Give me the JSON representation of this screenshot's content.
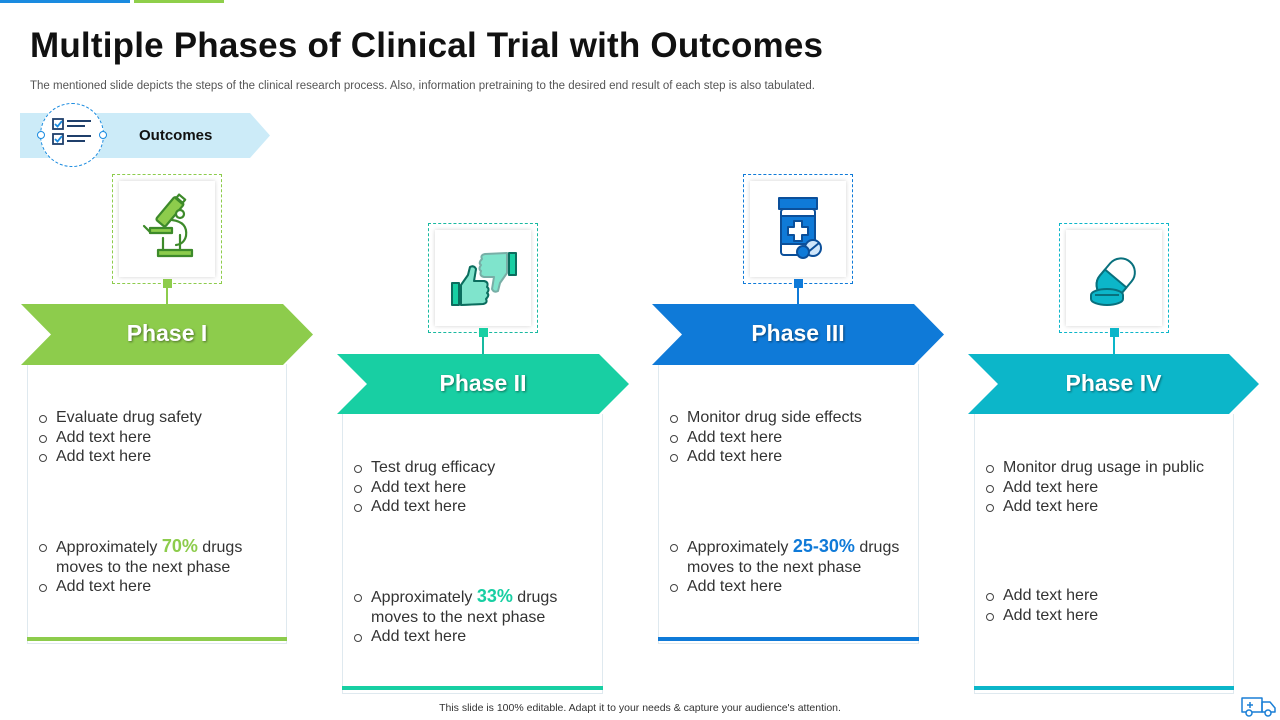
{
  "title": "Multiple Phases of Clinical Trial with Outcomes",
  "subtitle": "The mentioned slide depicts the steps of the clinical research process. Also, information pretraining to the desired end result of each step is also tabulated.",
  "outcomes": {
    "label": "Outcomes",
    "icon": "checklist-icon"
  },
  "colors": {
    "phase1": "#8dcc4c",
    "phase2": "#18cfa3",
    "phase3": "#0f7ad8",
    "phase4": "#0cb6c9",
    "banner": "#ccebf8"
  },
  "phases": [
    {
      "title": "Phase I",
      "icon": "microscope-icon",
      "bullets": [
        "Evaluate drug safety",
        "Add text here",
        "Add text here"
      ],
      "outcome": {
        "prefix": "Approximately ",
        "highlight": "70%",
        "suffix": " drugs moves to the next phase"
      },
      "extra": "Add text here"
    },
    {
      "title": "Phase II",
      "icon": "thumbs-up-down-icon",
      "bullets": [
        "Test drug efficacy",
        "Add text here",
        "Add text here"
      ],
      "outcome": {
        "prefix": "Approximately ",
        "highlight": "33%",
        "suffix": " drugs moves to the next phase"
      },
      "extra": "Add text here"
    },
    {
      "title": "Phase III",
      "icon": "medicine-bottle-icon",
      "bullets": [
        "Monitor drug side effects",
        "Add text here",
        "Add text here"
      ],
      "outcome": {
        "prefix": "Approximately ",
        "highlight": "25-30%",
        "suffix": " drugs moves to the next phase"
      },
      "extra": "Add text here"
    },
    {
      "title": "Phase IV",
      "icon": "capsule-pill-icon",
      "bullets": [
        "Monitor drug usage in public",
        "Add text here",
        "Add text here"
      ],
      "extras": [
        "Add text here",
        "Add text here"
      ]
    }
  ],
  "footer": "This slide is 100% editable.  Adapt it to your needs & capture your audience's attention.",
  "footer_icon": "ambulance-icon"
}
